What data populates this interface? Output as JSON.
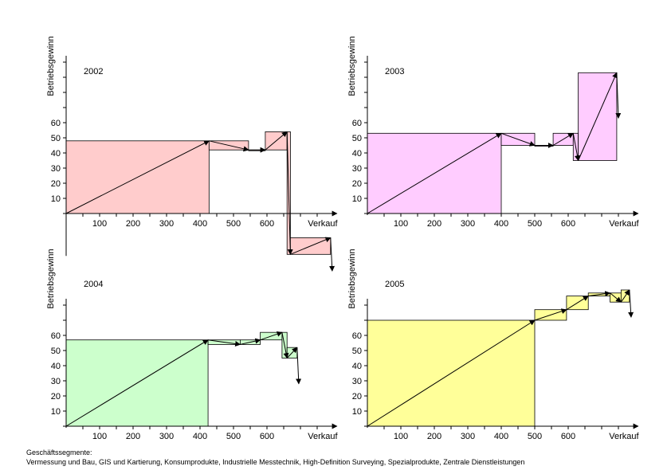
{
  "footer": {
    "heading": "Geschäftssegmente:",
    "segments": "Vermessung und Bau, GIS und Kartierung, Konsumprodukte, Industrielle Messtechnik, High-Definition Surveying, Spezialprodukte, Zentrale Dienstleistungen"
  },
  "chart_data": [
    {
      "type": "waterfall-marimekko",
      "title": "2002",
      "xlabel": "Verkauf",
      "ylabel": "Betriebsgewinn",
      "xlim": [
        0,
        795
      ],
      "ylim": [
        -27,
        100
      ],
      "xticks": [
        100,
        200,
        300,
        400,
        500,
        600
      ],
      "yticks": [
        10,
        20,
        30,
        40,
        50,
        60
      ],
      "color": "#ffcccc",
      "steps": [
        {
          "x0": 0,
          "x1": 427,
          "y0": 0,
          "y1": 48
        },
        {
          "x0": 427,
          "x1": 545,
          "y0": 48,
          "y1": 42
        },
        {
          "x0": 545,
          "x1": 595,
          "y0": 42,
          "y1": 42
        },
        {
          "x0": 595,
          "x1": 660,
          "y0": 42,
          "y1": 54
        },
        {
          "x0": 660,
          "x1": 670,
          "y0": 54,
          "y1": -27
        },
        {
          "x0": 670,
          "x1": 790,
          "y0": -27,
          "y1": -16
        },
        {
          "x0": 790,
          "x1": 795,
          "y0": -16,
          "y1": -38
        }
      ]
    },
    {
      "type": "waterfall-marimekko",
      "title": "2003",
      "xlabel": "Verkauf",
      "ylabel": "Betriebsgewinn",
      "xlim": [
        0,
        795
      ],
      "ylim": [
        0,
        100
      ],
      "xticks": [
        100,
        200,
        300,
        400,
        500,
        600
      ],
      "yticks": [
        10,
        20,
        30,
        40,
        50,
        60
      ],
      "color": "#ffccff",
      "steps": [
        {
          "x0": 0,
          "x1": 400,
          "y0": 0,
          "y1": 53
        },
        {
          "x0": 400,
          "x1": 500,
          "y0": 53,
          "y1": 45
        },
        {
          "x0": 500,
          "x1": 555,
          "y0": 45,
          "y1": 45
        },
        {
          "x0": 555,
          "x1": 615,
          "y0": 45,
          "y1": 53
        },
        {
          "x0": 615,
          "x1": 630,
          "y0": 53,
          "y1": 35
        },
        {
          "x0": 630,
          "x1": 745,
          "y0": 35,
          "y1": 93
        },
        {
          "x0": 745,
          "x1": 750,
          "y0": 93,
          "y1": 63
        }
      ]
    },
    {
      "type": "waterfall-marimekko",
      "title": "2004",
      "xlabel": "Verkauf",
      "ylabel": "Betriebsgewinn",
      "xlim": [
        0,
        795
      ],
      "ylim": [
        0,
        80
      ],
      "xticks": [
        100,
        200,
        300,
        400,
        500,
        600
      ],
      "yticks": [
        10,
        20,
        30,
        40,
        50,
        60
      ],
      "color": "#ccffcc",
      "steps": [
        {
          "x0": 0,
          "x1": 424,
          "y0": 0,
          "y1": 57
        },
        {
          "x0": 424,
          "x1": 520,
          "y0": 57,
          "y1": 54
        },
        {
          "x0": 520,
          "x1": 580,
          "y0": 54,
          "y1": 57
        },
        {
          "x0": 580,
          "x1": 645,
          "y0": 57,
          "y1": 62
        },
        {
          "x0": 645,
          "x1": 660,
          "y0": 62,
          "y1": 45
        },
        {
          "x0": 660,
          "x1": 690,
          "y0": 45,
          "y1": 52
        },
        {
          "x0": 690,
          "x1": 695,
          "y0": 52,
          "y1": 28
        }
      ]
    },
    {
      "type": "waterfall-marimekko",
      "title": "2005",
      "xlabel": "Verkauf",
      "ylabel": "Betriebsgewinn",
      "xlim": [
        0,
        795
      ],
      "ylim": [
        0,
        80
      ],
      "xticks": [
        100,
        200,
        300,
        400,
        500,
        600
      ],
      "yticks": [
        10,
        20,
        30,
        40,
        50,
        60
      ],
      "color": "#ffff99",
      "steps": [
        {
          "x0": 0,
          "x1": 500,
          "y0": 0,
          "y1": 70
        },
        {
          "x0": 500,
          "x1": 595,
          "y0": 70,
          "y1": 77
        },
        {
          "x0": 595,
          "x1": 660,
          "y0": 77,
          "y1": 86
        },
        {
          "x0": 660,
          "x1": 725,
          "y0": 86,
          "y1": 88
        },
        {
          "x0": 725,
          "x1": 758,
          "y0": 88,
          "y1": 82
        },
        {
          "x0": 758,
          "x1": 783,
          "y0": 82,
          "y1": 90
        },
        {
          "x0": 783,
          "x1": 788,
          "y0": 90,
          "y1": 72
        }
      ]
    }
  ]
}
